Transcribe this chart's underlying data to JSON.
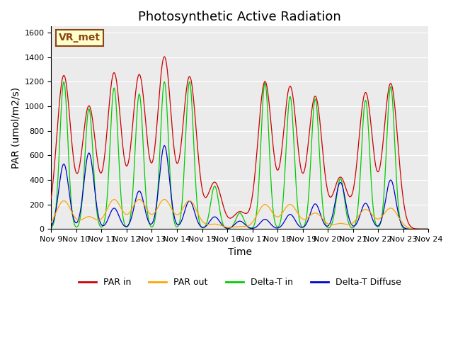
{
  "title": "Photosynthetic Active Radiation",
  "ylabel": "PAR (umol/m2/s)",
  "xlabel": "Time",
  "annotation_text": "VR_met",
  "annotation_bg": "#ffffcc",
  "annotation_border": "#8B4513",
  "ylim": [
    0,
    1650
  ],
  "yticks": [
    0,
    200,
    400,
    600,
    800,
    1000,
    1200,
    1400,
    1600
  ],
  "x_tick_labels": [
    "Nov 9",
    "Nov 10",
    "Nov 11",
    "Nov 12",
    "Nov 13",
    "Nov 14",
    "Nov 15",
    "Nov 16",
    "Nov 17",
    "Nov 18",
    "Nov 19",
    "Nov 20",
    "Nov 21",
    "Nov 22",
    "Nov 23",
    "Nov 24"
  ],
  "colors": {
    "PAR in": "#cc0000",
    "PAR out": "#ffa500",
    "Delta-T in": "#00cc00",
    "Delta-T Diffuse": "#0000cc"
  },
  "legend_labels": [
    "PAR in",
    "PAR out",
    "Delta-T in",
    "Delta-T Diffuse"
  ],
  "bg_color": "#ebebeb",
  "fig_bg": "#ffffff",
  "title_fontsize": 13,
  "label_fontsize": 10
}
